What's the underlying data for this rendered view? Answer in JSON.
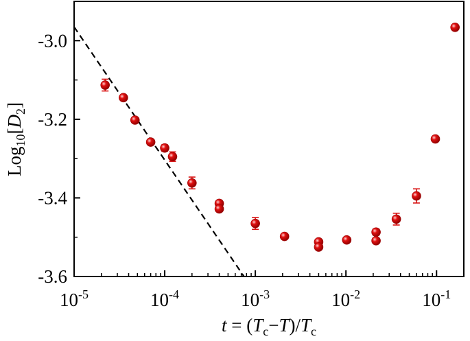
{
  "chart_data": {
    "type": "scatter",
    "xscale": "log",
    "xlim": [
      1e-05,
      0.2
    ],
    "ylim": [
      -3.6,
      -2.9
    ],
    "x_ticks": [
      {
        "value": 1e-05,
        "base": "10",
        "exp": "-5"
      },
      {
        "value": 0.0001,
        "base": "10",
        "exp": "-4"
      },
      {
        "value": 0.001,
        "base": "10",
        "exp": "-3"
      },
      {
        "value": 0.01,
        "base": "10",
        "exp": "-2"
      },
      {
        "value": 0.1,
        "base": "10",
        "exp": "-1"
      }
    ],
    "y_ticks": [
      {
        "value": -3.0,
        "label": "-3.0"
      },
      {
        "value": -3.2,
        "label": "-3.2"
      },
      {
        "value": -3.4,
        "label": "-3.4"
      },
      {
        "value": -3.6,
        "label": "-3.6"
      }
    ],
    "y_minor_ticks": [
      -3.1,
      -3.3,
      -3.5
    ],
    "xlabel": {
      "t": "t",
      "eq": " = (",
      "Tc1": "T",
      "c1": "c",
      "minus": "−",
      "T": "T",
      "close": ")/",
      "Tc2": "T",
      "c2": "c"
    },
    "ylabel": {
      "log": "Log",
      "sub": "10",
      "open": "[",
      "D": "D",
      "dsub": "2",
      "close": "]"
    },
    "grid": false,
    "legend": "none",
    "marker_color": "#e01010",
    "series": [
      {
        "points": [
          {
            "x": 2.2e-05,
            "y": -3.113,
            "err": 0.015
          },
          {
            "x": 3.5e-05,
            "y": -3.145,
            "err": 0.006
          },
          {
            "x": 4.7e-05,
            "y": -3.202,
            "err": 0.006
          },
          {
            "x": 7e-05,
            "y": -3.258,
            "err": 0.006
          },
          {
            "x": 0.0001,
            "y": -3.273,
            "err": 0.008
          },
          {
            "x": 0.000122,
            "y": -3.295,
            "err": 0.012
          },
          {
            "x": 0.0002,
            "y": -3.362,
            "err": 0.015
          },
          {
            "x": 0.0004,
            "y": -3.414,
            "err": 0.006
          },
          {
            "x": 0.0004,
            "y": -3.428,
            "err": 0.006
          },
          {
            "x": 0.001,
            "y": -3.465,
            "err": 0.015
          },
          {
            "x": 0.0021,
            "y": -3.498,
            "err": 0.006
          },
          {
            "x": 0.005,
            "y": -3.512,
            "err": 0.006
          },
          {
            "x": 0.005,
            "y": -3.525,
            "err": 0.006
          },
          {
            "x": 0.0102,
            "y": -3.507,
            "err": 0.006
          },
          {
            "x": 0.0215,
            "y": -3.487,
            "err": 0.008
          },
          {
            "x": 0.0215,
            "y": -3.509,
            "err": 0.006
          },
          {
            "x": 0.036,
            "y": -3.454,
            "err": 0.015
          },
          {
            "x": 0.06,
            "y": -3.395,
            "err": 0.018
          },
          {
            "x": 0.097,
            "y": -3.25,
            "err": 0.006
          },
          {
            "x": 0.16,
            "y": -2.966,
            "err": 0.006
          }
        ]
      }
    ],
    "fit_line": {
      "style": "dashed",
      "x": [
        1e-05,
        0.00075
      ],
      "y": [
        -2.965,
        -3.6
      ]
    }
  }
}
